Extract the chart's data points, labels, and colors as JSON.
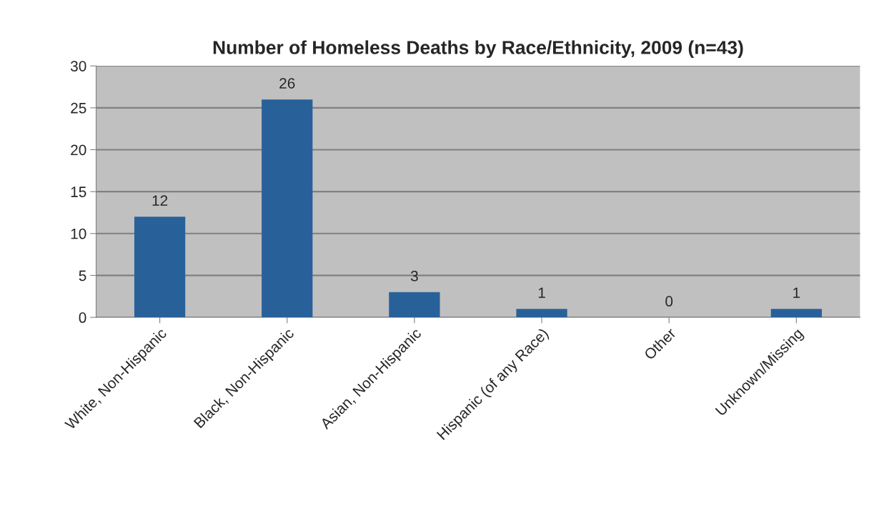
{
  "chart_data": {
    "type": "bar",
    "title": "Number of Homeless Deaths by Race/Ethnicity, 2009 (n=43)",
    "categories": [
      "White, Non-Hispanic",
      "Black, Non-Hispanic",
      "Asian, Non-Hispanic",
      "Hispanic (of any Race)",
      "Other",
      "Unknown/Missing"
    ],
    "values": [
      12,
      26,
      3,
      1,
      0,
      1
    ],
    "color": "#28619a",
    "ylim": [
      0,
      30
    ],
    "yticks": [
      0,
      5,
      10,
      15,
      20,
      25,
      30
    ],
    "grid": "y",
    "data_labels": true,
    "legend": false
  }
}
